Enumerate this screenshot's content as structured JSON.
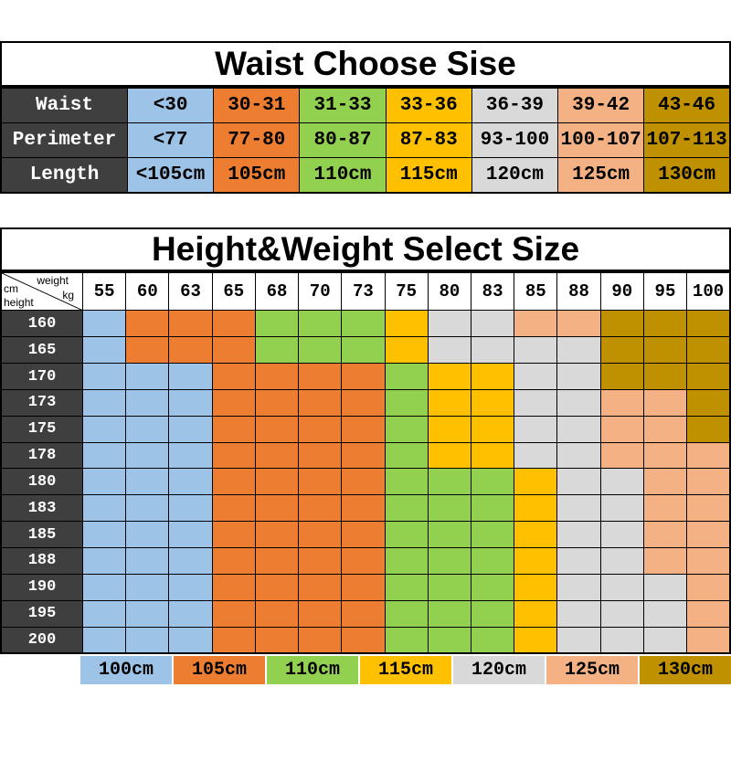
{
  "palette": {
    "blue": "#9DC3E6",
    "orange": "#ED7D31",
    "green": "#92D050",
    "yellow": "#FFC000",
    "silver": "#D9D9D9",
    "peach": "#F4B183",
    "gold": "#BF9000",
    "header_dark": "#3F3F3F"
  },
  "waist_table": {
    "title": "Waist Choose Sise",
    "column_colors": [
      "#9DC3E6",
      "#ED7D31",
      "#92D050",
      "#FFC000",
      "#D9D9D9",
      "#F4B183",
      "#BF9000"
    ],
    "rows": [
      {
        "label": "Waist",
        "cells": [
          "<30",
          "30-31",
          "31-33",
          "33-36",
          "36-39",
          "39-42",
          "43-46"
        ]
      },
      {
        "label": "Perimeter",
        "cells": [
          "<77",
          "77-80",
          "80-87",
          "87-83",
          "93-100",
          "100-107",
          "107-113"
        ]
      },
      {
        "label": "Length",
        "cells": [
          "<105cm",
          "105cm",
          "110cm",
          "115cm",
          "120cm",
          "125cm",
          "130cm"
        ]
      }
    ]
  },
  "size_table": {
    "title": "Height&Weight Select Size",
    "corner": {
      "cm": "cm",
      "weight": "weight",
      "height": "height",
      "kg": "kg"
    },
    "weights": [
      "55",
      "60",
      "63",
      "65",
      "68",
      "70",
      "73",
      "75",
      "80",
      "83",
      "85",
      "88",
      "90",
      "95",
      "100"
    ],
    "size_codes": {
      "B": {
        "size": "100cm",
        "color": "#9DC3E6"
      },
      "O": {
        "size": "105cm",
        "color": "#ED7D31"
      },
      "G": {
        "size": "110cm",
        "color": "#92D050"
      },
      "Y": {
        "size": "115cm",
        "color": "#FFC000"
      },
      "S": {
        "size": "120cm",
        "color": "#D9D9D9"
      },
      "P": {
        "size": "125cm",
        "color": "#F4B183"
      },
      "D": {
        "size": "130cm",
        "color": "#BF9000"
      }
    },
    "legend_order": [
      "B",
      "O",
      "G",
      "Y",
      "S",
      "P",
      "D"
    ],
    "rows": [
      {
        "height": "160",
        "cells": [
          "B",
          "O",
          "O",
          "O",
          "G",
          "G",
          "G",
          "Y",
          "S",
          "S",
          "P",
          "P",
          "D",
          "D",
          "D"
        ]
      },
      {
        "height": "165",
        "cells": [
          "B",
          "O",
          "O",
          "O",
          "G",
          "G",
          "G",
          "Y",
          "S",
          "S",
          "S",
          "S",
          "D",
          "D",
          "D"
        ]
      },
      {
        "height": "170",
        "cells": [
          "B",
          "B",
          "B",
          "O",
          "O",
          "O",
          "O",
          "G",
          "Y",
          "Y",
          "S",
          "S",
          "D",
          "D",
          "D"
        ]
      },
      {
        "height": "173",
        "cells": [
          "B",
          "B",
          "B",
          "O",
          "O",
          "O",
          "O",
          "G",
          "Y",
          "Y",
          "S",
          "S",
          "P",
          "P",
          "D"
        ]
      },
      {
        "height": "175",
        "cells": [
          "B",
          "B",
          "B",
          "O",
          "O",
          "O",
          "O",
          "G",
          "Y",
          "Y",
          "S",
          "S",
          "P",
          "P",
          "D"
        ]
      },
      {
        "height": "178",
        "cells": [
          "B",
          "B",
          "B",
          "O",
          "O",
          "O",
          "O",
          "G",
          "Y",
          "Y",
          "S",
          "S",
          "P",
          "P",
          "P"
        ]
      },
      {
        "height": "180",
        "cells": [
          "B",
          "B",
          "B",
          "O",
          "O",
          "O",
          "O",
          "G",
          "G",
          "G",
          "Y",
          "S",
          "S",
          "P",
          "P"
        ]
      },
      {
        "height": "183",
        "cells": [
          "B",
          "B",
          "B",
          "O",
          "O",
          "O",
          "O",
          "G",
          "G",
          "G",
          "Y",
          "S",
          "S",
          "P",
          "P"
        ]
      },
      {
        "height": "185",
        "cells": [
          "B",
          "B",
          "B",
          "O",
          "O",
          "O",
          "O",
          "G",
          "G",
          "G",
          "Y",
          "S",
          "S",
          "P",
          "P"
        ]
      },
      {
        "height": "188",
        "cells": [
          "B",
          "B",
          "B",
          "O",
          "O",
          "O",
          "O",
          "G",
          "G",
          "G",
          "Y",
          "S",
          "S",
          "P",
          "P"
        ]
      },
      {
        "height": "190",
        "cells": [
          "B",
          "B",
          "B",
          "O",
          "O",
          "O",
          "O",
          "G",
          "G",
          "G",
          "Y",
          "S",
          "S",
          "S",
          "P"
        ]
      },
      {
        "height": "195",
        "cells": [
          "B",
          "B",
          "B",
          "O",
          "O",
          "O",
          "O",
          "G",
          "G",
          "G",
          "Y",
          "S",
          "S",
          "S",
          "P"
        ]
      },
      {
        "height": "200",
        "cells": [
          "B",
          "B",
          "B",
          "O",
          "O",
          "O",
          "O",
          "G",
          "G",
          "G",
          "Y",
          "S",
          "S",
          "S",
          "P"
        ]
      }
    ]
  },
  "chart_data": [
    {
      "type": "table",
      "title": "Waist Choose Sise",
      "row_headers": [
        "Waist",
        "Perimeter",
        "Length"
      ],
      "rows": [
        [
          "<30",
          "30-31",
          "31-33",
          "33-36",
          "36-39",
          "39-42",
          "43-46"
        ],
        [
          "<77",
          "77-80",
          "80-87",
          "87-83",
          "93-100",
          "100-107",
          "107-113"
        ],
        [
          "<105cm",
          "105cm",
          "110cm",
          "115cm",
          "120cm",
          "125cm",
          "130cm"
        ]
      ]
    },
    {
      "type": "heatmap",
      "title": "Height&Weight Select Size",
      "xlabel": "weight kg",
      "ylabel": "height cm",
      "x": [
        55,
        60,
        63,
        65,
        68,
        70,
        73,
        75,
        80,
        83,
        85,
        88,
        90,
        95,
        100
      ],
      "y": [
        160,
        165,
        170,
        173,
        175,
        178,
        180,
        183,
        185,
        188,
        190,
        195,
        200
      ],
      "legend": {
        "B": "100cm",
        "O": "105cm",
        "G": "110cm",
        "Y": "115cm",
        "S": "120cm",
        "P": "125cm",
        "D": "130cm"
      },
      "values": [
        [
          "B",
          "O",
          "O",
          "O",
          "G",
          "G",
          "G",
          "Y",
          "S",
          "S",
          "P",
          "P",
          "D",
          "D",
          "D"
        ],
        [
          "B",
          "O",
          "O",
          "O",
          "G",
          "G",
          "G",
          "Y",
          "S",
          "S",
          "S",
          "S",
          "D",
          "D",
          "D"
        ],
        [
          "B",
          "B",
          "B",
          "O",
          "O",
          "O",
          "O",
          "G",
          "Y",
          "Y",
          "S",
          "S",
          "D",
          "D",
          "D"
        ],
        [
          "B",
          "B",
          "B",
          "O",
          "O",
          "O",
          "O",
          "G",
          "Y",
          "Y",
          "S",
          "S",
          "P",
          "P",
          "D"
        ],
        [
          "B",
          "B",
          "B",
          "O",
          "O",
          "O",
          "O",
          "G",
          "Y",
          "Y",
          "S",
          "S",
          "P",
          "P",
          "D"
        ],
        [
          "B",
          "B",
          "B",
          "O",
          "O",
          "O",
          "O",
          "G",
          "Y",
          "Y",
          "S",
          "S",
          "P",
          "P",
          "P"
        ],
        [
          "B",
          "B",
          "B",
          "O",
          "O",
          "O",
          "O",
          "G",
          "G",
          "G",
          "Y",
          "S",
          "S",
          "P",
          "P"
        ],
        [
          "B",
          "B",
          "B",
          "O",
          "O",
          "O",
          "O",
          "G",
          "G",
          "G",
          "Y",
          "S",
          "S",
          "P",
          "P"
        ],
        [
          "B",
          "B",
          "B",
          "O",
          "O",
          "O",
          "O",
          "G",
          "G",
          "G",
          "Y",
          "S",
          "S",
          "P",
          "P"
        ],
        [
          "B",
          "B",
          "B",
          "O",
          "O",
          "O",
          "O",
          "G",
          "G",
          "G",
          "Y",
          "S",
          "S",
          "P",
          "P"
        ],
        [
          "B",
          "B",
          "B",
          "O",
          "O",
          "O",
          "O",
          "G",
          "G",
          "G",
          "Y",
          "S",
          "S",
          "S",
          "P"
        ],
        [
          "B",
          "B",
          "B",
          "O",
          "O",
          "O",
          "O",
          "G",
          "G",
          "G",
          "Y",
          "S",
          "S",
          "S",
          "P"
        ],
        [
          "B",
          "B",
          "B",
          "O",
          "O",
          "O",
          "O",
          "G",
          "G",
          "G",
          "Y",
          "S",
          "S",
          "S",
          "P"
        ]
      ],
      "legend_position": "bottom"
    }
  ]
}
